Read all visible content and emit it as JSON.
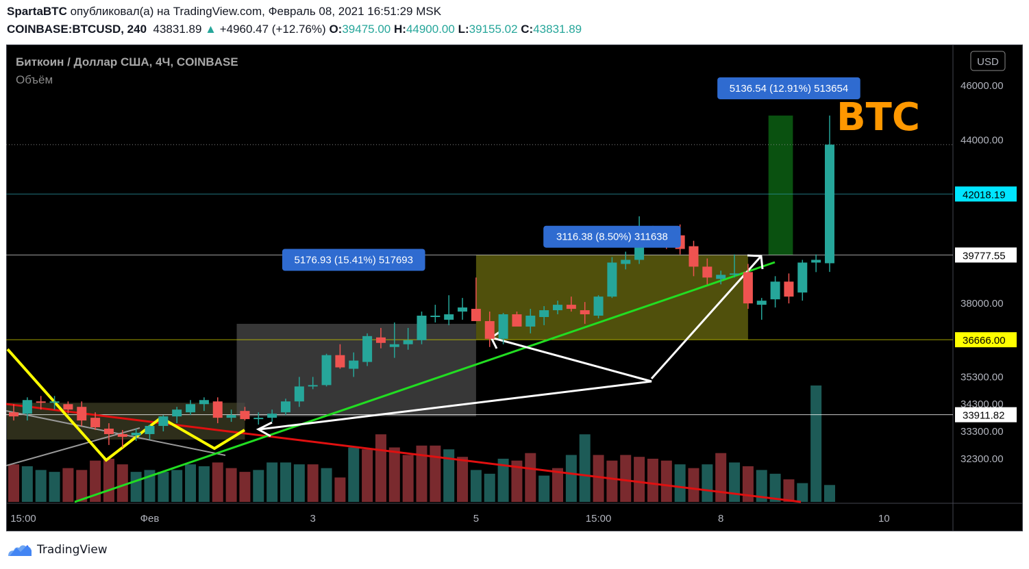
{
  "header": {
    "author": "SpartaBTC",
    "published": "опубликовал(а) на TradingView.com, Февраль 08, 2021 16:51:29 MSK",
    "symbol": "COINBASE:BTCUSD, 240",
    "last": "43831.89",
    "change": "+4960.47 (+12.76%)",
    "o_label": "O:",
    "o": "39475.00",
    "h_label": "H:",
    "h": "44900.00",
    "l_label": "L:",
    "l": "39155.02",
    "c_label": "C:",
    "c": "43831.89"
  },
  "footer": {
    "brand": "TradingView"
  },
  "chart_data": {
    "type": "candlestick",
    "title": "Биткоин / Доллар США, 4Ч, COINBASE",
    "subtitle": "Объём",
    "currency_button": "USD",
    "watermark": "BTC",
    "y_range": [
      31500,
      47000
    ],
    "y_ticks": [
      "46000.00",
      "44000.00",
      "38000.00",
      "35300.00",
      "34300.00",
      "33300.00",
      "32300.00"
    ],
    "y_tick_values": [
      46000,
      44000,
      38000,
      35300,
      34300,
      33300,
      32300
    ],
    "x_ticks": [
      "15:00",
      "Фев",
      "3",
      "5",
      "15:00",
      "8",
      "10"
    ],
    "x_tick_index": [
      0,
      10,
      22,
      34,
      43,
      52,
      64
    ],
    "price_levels": [
      {
        "label": "42018.19",
        "value": 42018.19,
        "color": "#00e5ff",
        "text_color": "#000000",
        "line": "#2a8f9a"
      },
      {
        "label": "39777.55",
        "value": 39777.55,
        "color": "#ffffff",
        "text_color": "#000000",
        "line": "#cccccc"
      },
      {
        "label": "36666.00",
        "value": 36666.0,
        "color": "#ffff00",
        "text_color": "#000000",
        "line": "#cccc00"
      },
      {
        "label": "33911.82",
        "value": 33911.82,
        "color": "#ffffff",
        "text_color": "#000000",
        "line": "#ffffff"
      }
    ],
    "measure_labels": [
      {
        "text": "5176.93 (15.41%) 517693",
        "index": 25,
        "value": 39600
      },
      {
        "text": "3116.38 (8.50%) 311638",
        "index": 44,
        "value": 40450
      },
      {
        "text": "5136.54 (12.91%) 513654",
        "index": 57,
        "value": 45900
      }
    ],
    "ohlc": [
      [
        34000,
        34300,
        33700,
        33850
      ],
      [
        33950,
        34550,
        33700,
        34450
      ],
      [
        34400,
        34600,
        34100,
        34350
      ],
      [
        34350,
        34600,
        34100,
        34400
      ],
      [
        34300,
        34400,
        33950,
        34100
      ],
      [
        34200,
        34400,
        33500,
        33700
      ],
      [
        33800,
        34000,
        33350,
        33450
      ],
      [
        33400,
        33600,
        32800,
        33200
      ],
      [
        33200,
        33350,
        32700,
        33100
      ],
      [
        33150,
        33400,
        32950,
        33250
      ],
      [
        33200,
        33550,
        33000,
        33500
      ],
      [
        33500,
        33900,
        33300,
        33850
      ],
      [
        33850,
        34200,
        33600,
        34100
      ],
      [
        34000,
        34450,
        33900,
        34300
      ],
      [
        34300,
        34550,
        34050,
        34450
      ],
      [
        34400,
        34550,
        33600,
        33800
      ],
      [
        33800,
        34100,
        33650,
        33900
      ],
      [
        34050,
        34200,
        33700,
        33750
      ],
      [
        33750,
        34000,
        33550,
        33800
      ],
      [
        33800,
        34100,
        33650,
        33950
      ],
      [
        34000,
        34500,
        33900,
        34400
      ],
      [
        34400,
        35300,
        34200,
        34950
      ],
      [
        35000,
        35300,
        34850,
        35000
      ],
      [
        35000,
        36150,
        34950,
        36100
      ],
      [
        36100,
        36500,
        35600,
        35650
      ],
      [
        35600,
        36200,
        35300,
        35900
      ],
      [
        35850,
        36900,
        35700,
        36800
      ],
      [
        36750,
        37100,
        36350,
        36550
      ],
      [
        36400,
        37300,
        36000,
        36500
      ],
      [
        36500,
        37100,
        36300,
        36650
      ],
      [
        36650,
        37700,
        36500,
        37550
      ],
      [
        37550,
        37950,
        37300,
        37550
      ],
      [
        37400,
        38300,
        37200,
        37600
      ],
      [
        37700,
        38200,
        37400,
        37850
      ],
      [
        37800,
        38950,
        37500,
        37350
      ],
      [
        37350,
        37700,
        36400,
        36700
      ],
      [
        36700,
        37650,
        36500,
        37600
      ],
      [
        37600,
        37700,
        37250,
        37150
      ],
      [
        37150,
        37800,
        36900,
        37550
      ],
      [
        37500,
        37900,
        37200,
        37750
      ],
      [
        37750,
        38100,
        37600,
        37950
      ],
      [
        37950,
        38250,
        37700,
        37800
      ],
      [
        37750,
        38050,
        37250,
        37600
      ],
      [
        37550,
        38300,
        37450,
        38250
      ],
      [
        38250,
        39700,
        38200,
        39500
      ],
      [
        39450,
        39900,
        39250,
        39600
      ],
      [
        39600,
        41200,
        39450,
        40400
      ],
      [
        40400,
        40850,
        40100,
        40600
      ],
      [
        40550,
        40800,
        40000,
        40500
      ],
      [
        40500,
        40900,
        39800,
        40000
      ],
      [
        40100,
        40300,
        39000,
        39350
      ],
      [
        39350,
        39650,
        38700,
        38950
      ],
      [
        38900,
        39200,
        38700,
        39050
      ],
      [
        39050,
        39800,
        38950,
        39100
      ],
      [
        39150,
        39450,
        37800,
        38000
      ],
      [
        37950,
        38200,
        37400,
        38100
      ],
      [
        38150,
        39000,
        37850,
        38800
      ],
      [
        38800,
        39100,
        38000,
        38250
      ],
      [
        38400,
        39600,
        38100,
        39500
      ],
      [
        39500,
        39800,
        39150,
        39600
      ],
      [
        39475,
        44900,
        39155,
        43831.89
      ]
    ],
    "volume": [
      [
        2000,
        0
      ],
      [
        1900,
        1
      ],
      [
        1700,
        1
      ],
      [
        1600,
        1
      ],
      [
        1800,
        0
      ],
      [
        1700,
        0
      ],
      [
        2200,
        0
      ],
      [
        2300,
        0
      ],
      [
        2000,
        0
      ],
      [
        1600,
        1
      ],
      [
        1700,
        1
      ],
      [
        1600,
        1
      ],
      [
        1700,
        1
      ],
      [
        2000,
        1
      ],
      [
        1900,
        1
      ],
      [
        2100,
        0
      ],
      [
        1800,
        0
      ],
      [
        1600,
        0
      ],
      [
        1700,
        1
      ],
      [
        2100,
        1
      ],
      [
        2100,
        1
      ],
      [
        2000,
        1
      ],
      [
        2000,
        0
      ],
      [
        1800,
        1
      ],
      [
        1300,
        0
      ],
      [
        2900,
        1
      ],
      [
        2800,
        0
      ],
      [
        3600,
        0
      ],
      [
        2900,
        0
      ],
      [
        2500,
        0
      ],
      [
        3000,
        0
      ],
      [
        3000,
        0
      ],
      [
        2800,
        1
      ],
      [
        2400,
        0
      ],
      [
        1700,
        1
      ],
      [
        1500,
        1
      ],
      [
        2300,
        1
      ],
      [
        2200,
        0
      ],
      [
        2600,
        0
      ],
      [
        1400,
        1
      ],
      [
        1800,
        0
      ],
      [
        2500,
        1
      ],
      [
        3600,
        1
      ],
      [
        2500,
        0
      ],
      [
        2200,
        0
      ],
      [
        2500,
        0
      ],
      [
        2400,
        0
      ],
      [
        2300,
        0
      ],
      [
        2200,
        0
      ],
      [
        2000,
        1
      ],
      [
        1800,
        0
      ],
      [
        2000,
        1
      ],
      [
        2600,
        0
      ],
      [
        2100,
        1
      ],
      [
        1900,
        0
      ],
      [
        1700,
        1
      ],
      [
        1500,
        1
      ],
      [
        1200,
        0
      ],
      [
        1000,
        1
      ],
      [
        6200,
        1
      ],
      [
        900,
        1
      ]
    ]
  }
}
